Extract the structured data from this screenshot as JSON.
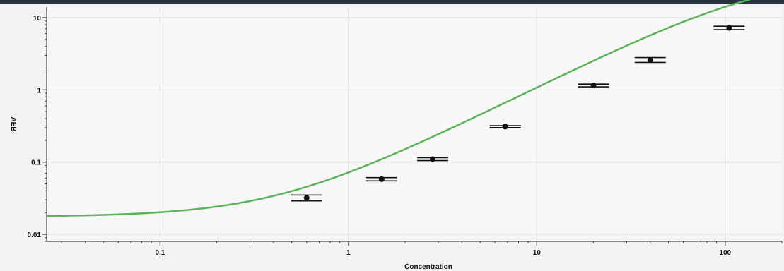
{
  "chart_data": {
    "type": "scatter",
    "xlabel": "Concentration",
    "ylabel": "AEB",
    "x_scale": "log",
    "y_scale": "log",
    "xlim": [
      0.025,
      200
    ],
    "ylim": [
      0.008,
      14
    ],
    "x_ticks": [
      {
        "value": 0.1,
        "label": "0.1"
      },
      {
        "value": 1,
        "label": "1"
      },
      {
        "value": 10,
        "label": "10"
      },
      {
        "value": 100,
        "label": "100"
      }
    ],
    "y_ticks": [
      {
        "value": 0.01,
        "label": "0.01"
      },
      {
        "value": 0.1,
        "label": "0.1"
      },
      {
        "value": 1,
        "label": "1"
      },
      {
        "value": 10,
        "label": "10"
      }
    ],
    "grid": true,
    "points": [
      {
        "x": 0.6,
        "y": 0.032,
        "y_err": 0.003
      },
      {
        "x": 1.5,
        "y": 0.058,
        "y_err": 0.003
      },
      {
        "x": 2.8,
        "y": 0.11,
        "y_err": 0.005
      },
      {
        "x": 6.8,
        "y": 0.31,
        "y_err": 0.01
      },
      {
        "x": 20,
        "y": 1.15,
        "y_err": 0.05
      },
      {
        "x": 40,
        "y": 2.6,
        "y_err": 0.2
      },
      {
        "x": 105,
        "y": 7.2,
        "y_err": 0.4
      }
    ],
    "fit_curve": {
      "model": "4PL",
      "bottom": 0.0175,
      "top": 40,
      "ec50": 160,
      "hill": 1.3
    },
    "colors": {
      "curve": "#5cb35c",
      "marker": "#111111",
      "grid": "#dcdcdc",
      "frame": "#444444",
      "header_bar": "#2a3340"
    }
  }
}
